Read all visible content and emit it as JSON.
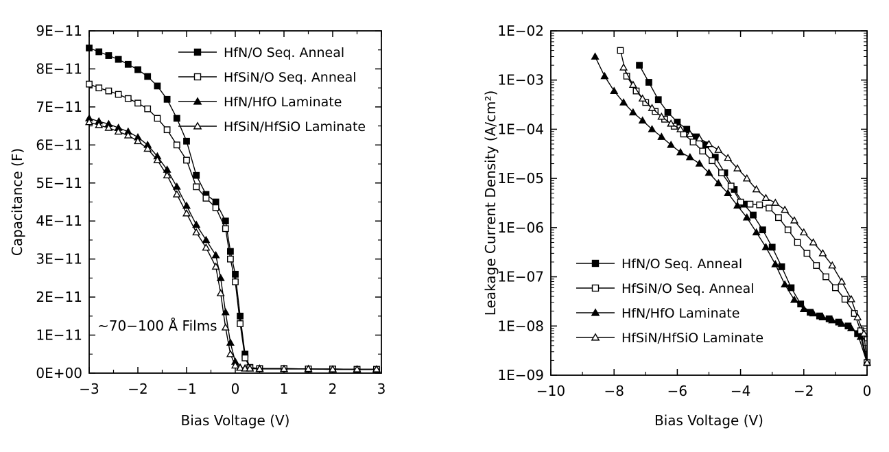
{
  "chart_data": [
    {
      "type": "line",
      "xlabel": "Bias Voltage (V)",
      "ylabel": "Capacitance (F)",
      "xlim": [
        -3,
        3
      ],
      "ylim": [
        0,
        9e-11
      ],
      "x_ticks": [
        "−3",
        "−2",
        "−1",
        "0",
        "1",
        "2",
        "3"
      ],
      "y_ticks": [
        "0E+00",
        "1E−11",
        "2E−11",
        "3E−11",
        "4E−11",
        "5E−11",
        "6E−11",
        "7E−11",
        "8E−11",
        "9E−11"
      ],
      "annotation": "~70−100 Å Films",
      "legend_position": "top-right",
      "series": [
        {
          "name": "HfN/O Seq. Anneal",
          "marker": "square-filled",
          "x": [
            -3.0,
            -2.8,
            -2.6,
            -2.4,
            -2.2,
            -2.0,
            -1.8,
            -1.6,
            -1.4,
            -1.2,
            -1.0,
            -0.8,
            -0.6,
            -0.4,
            -0.2,
            -0.1,
            0.0,
            0.1,
            0.2,
            0.3,
            0.5,
            1.0,
            1.5,
            2.0,
            2.5,
            2.9
          ],
          "y": [
            8.55e-11,
            8.45e-11,
            8.35e-11,
            8.25e-11,
            8.12e-11,
            7.98e-11,
            7.8e-11,
            7.55e-11,
            7.2e-11,
            6.7e-11,
            6.1e-11,
            5.2e-11,
            4.7e-11,
            4.5e-11,
            4e-11,
            3.2e-11,
            2.6e-11,
            1.5e-11,
            5e-12,
            1.5e-12,
            1.2e-12,
            1.2e-12,
            1.1e-12,
            1.1e-12,
            1e-12,
            1e-12
          ]
        },
        {
          "name": "HfSiN/O Seq. Anneal",
          "marker": "square-open",
          "x": [
            -3.0,
            -2.8,
            -2.6,
            -2.4,
            -2.2,
            -2.0,
            -1.8,
            -1.6,
            -1.4,
            -1.2,
            -1.0,
            -0.8,
            -0.6,
            -0.4,
            -0.2,
            -0.1,
            0.0,
            0.1,
            0.2,
            0.3,
            0.5,
            1.0,
            1.5,
            2.0,
            2.5,
            2.9
          ],
          "y": [
            7.6e-11,
            7.5e-11,
            7.42e-11,
            7.33e-11,
            7.22e-11,
            7.1e-11,
            6.95e-11,
            6.7e-11,
            6.4e-11,
            6e-11,
            5.6e-11,
            4.9e-11,
            4.6e-11,
            4.35e-11,
            3.8e-11,
            3e-11,
            2.4e-11,
            1.3e-11,
            4e-12,
            1.4e-12,
            1.2e-12,
            1.2e-12,
            1.1e-12,
            1.1e-12,
            1e-12,
            1e-12
          ]
        },
        {
          "name": "HfN/HfO Laminate",
          "marker": "triangle-filled",
          "x": [
            -3.0,
            -2.8,
            -2.6,
            -2.4,
            -2.2,
            -2.0,
            -1.8,
            -1.6,
            -1.4,
            -1.2,
            -1.0,
            -0.8,
            -0.6,
            -0.4,
            -0.3,
            -0.2,
            -0.1,
            0.0,
            0.1,
            0.2,
            0.3,
            0.5,
            1.0,
            1.5,
            2.0,
            2.5,
            2.9
          ],
          "y": [
            6.7e-11,
            6.62e-11,
            6.55e-11,
            6.45e-11,
            6.35e-11,
            6.2e-11,
            6e-11,
            5.7e-11,
            5.35e-11,
            4.9e-11,
            4.4e-11,
            3.9e-11,
            3.5e-11,
            3.1e-11,
            2.5e-11,
            1.6e-11,
            8e-12,
            3e-12,
            1.5e-12,
            1.3e-12,
            1.2e-12,
            1.2e-12,
            1.1e-12,
            1.1e-12,
            1e-12,
            1e-12,
            1e-12
          ]
        },
        {
          "name": "HfSiN/HfSiO Laminate",
          "marker": "triangle-open",
          "x": [
            -3.0,
            -2.8,
            -2.6,
            -2.4,
            -2.2,
            -2.0,
            -1.8,
            -1.6,
            -1.4,
            -1.2,
            -1.0,
            -0.8,
            -0.6,
            -0.4,
            -0.3,
            -0.2,
            -0.1,
            0.0,
            0.1,
            0.2,
            0.3,
            0.5,
            1.0,
            1.5,
            2.0,
            2.5,
            2.9
          ],
          "y": [
            6.6e-11,
            6.52e-11,
            6.45e-11,
            6.35e-11,
            6.25e-11,
            6.1e-11,
            5.9e-11,
            5.6e-11,
            5.2e-11,
            4.7e-11,
            4.2e-11,
            3.7e-11,
            3.3e-11,
            2.8e-11,
            2.1e-11,
            1.2e-11,
            5e-12,
            2e-12,
            1.4e-12,
            1.2e-12,
            1.2e-12,
            1.1e-12,
            1.1e-12,
            1.1e-12,
            1e-12,
            1e-12,
            1e-12
          ]
        }
      ]
    },
    {
      "type": "line",
      "xlabel": "Bias Voltage (V)",
      "ylabel": "Leakage Current Density (A/cm²)",
      "xlim": [
        -10,
        0
      ],
      "ylim": [
        1e-09,
        0.01
      ],
      "y_scale": "log",
      "x_ticks": [
        "−10",
        "−8",
        "−6",
        "−4",
        "−2",
        "0"
      ],
      "y_ticks": [
        "1E−09",
        "1E−08",
        "1E−07",
        "1E−06",
        "1E−05",
        "1E−04",
        "1E−03",
        "1E−02"
      ],
      "legend_position": "bottom-left",
      "series": [
        {
          "name": "HfN/O Seq. Anneal",
          "marker": "square-filled",
          "x": [
            -7.2,
            -6.9,
            -6.6,
            -6.3,
            -6.0,
            -5.7,
            -5.4,
            -5.1,
            -4.8,
            -4.5,
            -4.2,
            -3.9,
            -3.6,
            -3.3,
            -3.0,
            -2.7,
            -2.4,
            -2.1,
            -1.8,
            -1.5,
            -1.2,
            -0.9,
            -0.6,
            -0.3,
            0.0
          ],
          "y": [
            0.002,
            0.0009,
            0.0004,
            0.00022,
            0.00014,
            0.0001,
            7e-05,
            4.8e-05,
            2.7e-05,
            1.3e-05,
            6e-06,
            3e-06,
            1.8e-06,
            9e-07,
            4e-07,
            1.6e-07,
            6e-08,
            2.8e-08,
            1.9e-08,
            1.6e-08,
            1.4e-08,
            1.2e-08,
            1e-08,
            7e-09,
            1.8e-09
          ]
        },
        {
          "name": "HfSiN/O Seq. Anneal",
          "marker": "square-open",
          "x": [
            -7.8,
            -7.6,
            -7.3,
            -7.0,
            -6.7,
            -6.4,
            -6.1,
            -5.8,
            -5.5,
            -5.2,
            -4.9,
            -4.6,
            -4.3,
            -4.0,
            -3.7,
            -3.4,
            -3.1,
            -2.8,
            -2.5,
            -2.2,
            -1.9,
            -1.6,
            -1.3,
            -1.0,
            -0.7,
            -0.4,
            -0.2,
            0.0
          ],
          "y": [
            0.004,
            0.0012,
            0.0006,
            0.00035,
            0.00023,
            0.00016,
            0.000115,
            8e-05,
            5.5e-05,
            3.6e-05,
            2.3e-05,
            1.3e-05,
            7e-06,
            3.3e-06,
            3e-06,
            2.9e-06,
            2.5e-06,
            1.6e-06,
            9e-07,
            5e-07,
            3e-07,
            1.7e-07,
            1e-07,
            6e-08,
            3.5e-08,
            1.8e-08,
            8e-09,
            1.8e-09
          ]
        },
        {
          "name": "HfN/HfO Laminate",
          "marker": "triangle-filled",
          "x": [
            -8.6,
            -8.3,
            -8.0,
            -7.7,
            -7.4,
            -7.1,
            -6.8,
            -6.5,
            -6.2,
            -5.9,
            -5.6,
            -5.3,
            -5.0,
            -4.7,
            -4.4,
            -4.1,
            -3.8,
            -3.5,
            -3.2,
            -2.9,
            -2.6,
            -2.3,
            -2.0,
            -1.7,
            -1.4,
            -1.1,
            -0.8,
            -0.5,
            -0.2,
            0.0
          ],
          "y": [
            0.003,
            0.0012,
            0.0006,
            0.00035,
            0.00022,
            0.00015,
            0.0001,
            7e-05,
            4.8e-05,
            3.4e-05,
            2.7e-05,
            2e-05,
            1.3e-05,
            8e-06,
            5e-06,
            2.8e-06,
            1.6e-06,
            8e-07,
            4e-07,
            1.8e-07,
            7e-08,
            3.4e-08,
            2.2e-08,
            1.8e-08,
            1.5e-08,
            1.3e-08,
            1.1e-08,
            9e-09,
            6e-09,
            1.8e-09
          ]
        },
        {
          "name": "HfSiN/HfSiO Laminate",
          "marker": "triangle-open",
          "x": [
            -7.7,
            -7.4,
            -7.1,
            -6.8,
            -6.5,
            -6.2,
            -5.9,
            -5.6,
            -5.3,
            -5.0,
            -4.7,
            -4.4,
            -4.1,
            -3.8,
            -3.5,
            -3.2,
            -2.9,
            -2.6,
            -2.3,
            -2.0,
            -1.7,
            -1.4,
            -1.1,
            -0.8,
            -0.5,
            -0.3,
            -0.1,
            0.0
          ],
          "y": [
            0.0018,
            0.0008,
            0.00042,
            0.00027,
            0.00018,
            0.00013,
            0.0001,
            8e-05,
            6.5e-05,
            5e-05,
            3.8e-05,
            2.6e-05,
            1.6e-05,
            1e-05,
            6e-06,
            4e-06,
            3.2e-06,
            2.3e-06,
            1.4e-06,
            8e-07,
            5e-07,
            3e-07,
            1.7e-07,
            8e-08,
            3.5e-08,
            1.5e-08,
            7e-09,
            1.8e-09
          ]
        }
      ]
    }
  ]
}
